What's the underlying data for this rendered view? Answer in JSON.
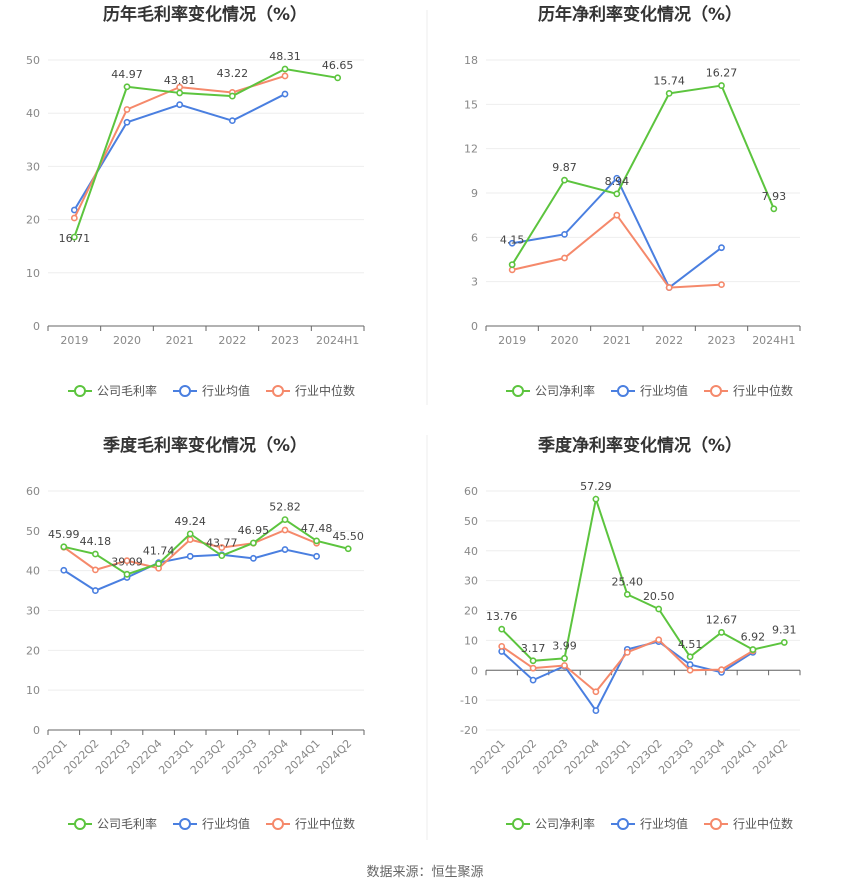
{
  "source": "数据来源：恒生聚源",
  "colors": {
    "company": "#5cc43e",
    "avg": "#4a7fe0",
    "median": "#f5896b"
  },
  "legend_common": {
    "avg": "行业均值",
    "median": "行业中位数"
  },
  "chart_data": [
    {
      "type": "line",
      "title": "历年毛利率变化情况（%）",
      "categories": [
        "2019",
        "2020",
        "2021",
        "2022",
        "2023",
        "2024H1"
      ],
      "ylim": [
        0,
        50
      ],
      "yticks": [
        0,
        10,
        20,
        30,
        40,
        50
      ],
      "grid": true,
      "legend_position": "bottom",
      "series": [
        {
          "name": "公司毛利率",
          "key": "company",
          "values": [
            16.71,
            44.97,
            43.81,
            43.22,
            48.31,
            46.65
          ],
          "labels": [
            "16.71",
            "44.97",
            "43.81",
            "43.22",
            "48.31",
            "46.65"
          ]
        },
        {
          "name": "行业均值",
          "key": "avg",
          "values": [
            21.8,
            38.3,
            41.6,
            38.6,
            43.6,
            null
          ]
        },
        {
          "name": "行业中位数",
          "key": "median",
          "values": [
            20.3,
            40.7,
            44.9,
            43.9,
            47.0,
            null
          ]
        }
      ]
    },
    {
      "type": "line",
      "title": "历年净利率变化情况（%）",
      "categories": [
        "2019",
        "2020",
        "2021",
        "2022",
        "2023",
        "2024H1"
      ],
      "ylim": [
        0,
        18
      ],
      "yticks": [
        0,
        3,
        6,
        9,
        12,
        15,
        18
      ],
      "grid": true,
      "legend_position": "bottom",
      "series": [
        {
          "name": "公司净利率",
          "key": "company",
          "values": [
            4.15,
            9.87,
            8.94,
            15.74,
            16.27,
            7.93
          ],
          "labels": [
            "4.15",
            "9.87",
            "8.94",
            "15.74",
            "16.27",
            "7.93"
          ]
        },
        {
          "name": "行业均值",
          "key": "avg",
          "values": [
            5.6,
            6.2,
            10.0,
            2.6,
            5.3,
            null
          ]
        },
        {
          "name": "行业中位数",
          "key": "median",
          "values": [
            3.8,
            4.6,
            7.5,
            2.6,
            2.8,
            null
          ]
        }
      ]
    },
    {
      "type": "line",
      "title": "季度毛利率变化情况（%）",
      "categories": [
        "2022Q1",
        "2022Q2",
        "2022Q3",
        "2022Q4",
        "2023Q1",
        "2023Q2",
        "2023Q3",
        "2023Q4",
        "2024Q1",
        "2024Q2"
      ],
      "ylim": [
        0,
        60
      ],
      "yticks": [
        0,
        10,
        20,
        30,
        40,
        50,
        60
      ],
      "grid": true,
      "legend_position": "bottom",
      "series": [
        {
          "name": "公司毛利率",
          "key": "company",
          "values": [
            45.99,
            44.18,
            39.09,
            41.74,
            49.24,
            43.77,
            46.95,
            52.82,
            47.48,
            45.5
          ],
          "labels": [
            "45.99",
            "44.18",
            "39.09",
            "41.74",
            "49.24",
            "43.77",
            "46.95",
            "52.82",
            "47.48",
            "45.50"
          ]
        },
        {
          "name": "行业均值",
          "key": "avg",
          "values": [
            40.1,
            35.0,
            38.3,
            42.0,
            43.6,
            44.0,
            43.1,
            45.3,
            43.6,
            null
          ]
        },
        {
          "name": "行业中位数",
          "key": "median",
          "values": [
            45.9,
            40.2,
            42.5,
            40.6,
            47.8,
            45.8,
            46.9,
            50.2,
            46.9,
            null
          ]
        }
      ]
    },
    {
      "type": "line",
      "title": "季度净利率变化情况（%）",
      "categories": [
        "2022Q1",
        "2022Q2",
        "2022Q3",
        "2022Q4",
        "2023Q1",
        "2023Q2",
        "2023Q3",
        "2023Q4",
        "2024Q1",
        "2024Q2"
      ],
      "ylim": [
        -20,
        60
      ],
      "yticks": [
        -20,
        -10,
        0,
        10,
        20,
        30,
        40,
        50,
        60
      ],
      "grid": true,
      "legend_position": "bottom",
      "series": [
        {
          "name": "公司净利率",
          "key": "company",
          "values": [
            13.76,
            3.17,
            3.99,
            57.29,
            25.4,
            20.5,
            4.51,
            12.67,
            6.92,
            9.31
          ],
          "labels": [
            "13.76",
            "3.17",
            "3.99",
            "57.29",
            "25.40",
            "20.50",
            "4.51",
            "12.67",
            "6.92",
            "9.31"
          ]
        },
        {
          "name": "行业均值",
          "key": "avg",
          "values": [
            6.3,
            -3.3,
            1.4,
            -13.5,
            7.0,
            9.6,
            1.9,
            -0.7,
            6.0,
            null
          ]
        },
        {
          "name": "行业中位数",
          "key": "median",
          "values": [
            8.0,
            0.7,
            1.6,
            -7.2,
            6.0,
            10.2,
            0.0,
            0.2,
            6.5,
            null
          ]
        }
      ]
    }
  ]
}
